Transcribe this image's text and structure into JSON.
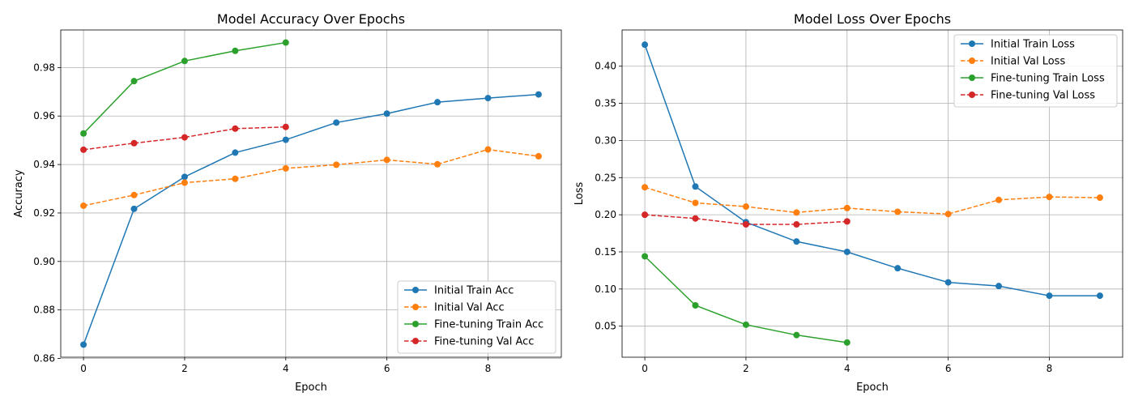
{
  "chart_data": [
    {
      "type": "line",
      "title": "Model Accuracy Over Epochs",
      "xlabel": "Epoch",
      "ylabel": "Accuracy",
      "xlim": [
        -0.45,
        9.45
      ],
      "ylim": [
        0.8605,
        0.9955
      ],
      "xticks": [
        0,
        2,
        4,
        6,
        8
      ],
      "yticks": [
        0.86,
        0.88,
        0.9,
        0.92,
        0.94,
        0.96,
        0.98
      ],
      "ytick_labels": [
        "0.86",
        "0.88",
        "0.90",
        "0.92",
        "0.94",
        "0.96",
        "0.98"
      ],
      "grid": true,
      "legend_position": "lower right",
      "series": [
        {
          "name": "Initial Train Acc",
          "color": "#1f77b4",
          "dashed": false,
          "x": [
            0,
            1,
            2,
            3,
            4,
            5,
            6,
            7,
            8,
            9
          ],
          "y": [
            0.8657,
            0.9217,
            0.9349,
            0.9449,
            0.9502,
            0.9573,
            0.961,
            0.9657,
            0.9674,
            0.9689
          ]
        },
        {
          "name": "Initial Val Acc",
          "color": "#ff7f0e",
          "dashed": true,
          "x": [
            0,
            1,
            2,
            3,
            4,
            5,
            6,
            7,
            8,
            9
          ],
          "y": [
            0.923,
            0.9274,
            0.9325,
            0.9341,
            0.9384,
            0.9399,
            0.9419,
            0.9401,
            0.9462,
            0.9434
          ]
        },
        {
          "name": "Fine-tuning Train Acc",
          "color": "#2ca02c",
          "dashed": false,
          "x": [
            0,
            1,
            2,
            3,
            4
          ],
          "y": [
            0.9528,
            0.9744,
            0.9827,
            0.9869,
            0.9903
          ]
        },
        {
          "name": "Fine-tuning Val Acc",
          "color": "#d62728",
          "dashed": true,
          "x": [
            0,
            1,
            2,
            3,
            4
          ],
          "y": [
            0.9461,
            0.9488,
            0.9512,
            0.9548,
            0.9555
          ]
        }
      ]
    },
    {
      "type": "line",
      "title": "Model Loss Over Epochs",
      "xlabel": "Epoch",
      "ylabel": "Loss",
      "xlim": [
        -0.45,
        9.45
      ],
      "ylim": [
        0.0082,
        0.4488
      ],
      "xticks": [
        0,
        2,
        4,
        6,
        8
      ],
      "yticks": [
        0.05,
        0.1,
        0.15,
        0.2,
        0.25,
        0.3,
        0.35,
        0.4
      ],
      "ytick_labels": [
        "0.05",
        "0.10",
        "0.15",
        "0.20",
        "0.25",
        "0.30",
        "0.35",
        "0.40"
      ],
      "grid": true,
      "legend_position": "upper right",
      "series": [
        {
          "name": "Initial Train Loss",
          "color": "#1f77b4",
          "dashed": false,
          "x": [
            0,
            1,
            2,
            3,
            4,
            5,
            6,
            7,
            8,
            9
          ],
          "y": [
            0.429,
            0.238,
            0.19,
            0.164,
            0.15,
            0.128,
            0.109,
            0.104,
            0.091,
            0.091
          ]
        },
        {
          "name": "Initial Val Loss",
          "color": "#ff7f0e",
          "dashed": true,
          "x": [
            0,
            1,
            2,
            3,
            4,
            5,
            6,
            7,
            8,
            9
          ],
          "y": [
            0.237,
            0.216,
            0.211,
            0.203,
            0.209,
            0.204,
            0.201,
            0.22,
            0.224,
            0.223
          ]
        },
        {
          "name": "Fine-tuning Train Loss",
          "color": "#2ca02c",
          "dashed": false,
          "x": [
            0,
            1,
            2,
            3,
            4
          ],
          "y": [
            0.144,
            0.078,
            0.052,
            0.038,
            0.028
          ]
        },
        {
          "name": "Fine-tuning Val Loss",
          "color": "#d62728",
          "dashed": true,
          "x": [
            0,
            1,
            2,
            3,
            4
          ],
          "y": [
            0.2,
            0.195,
            0.187,
            0.187,
            0.191
          ]
        }
      ]
    }
  ]
}
